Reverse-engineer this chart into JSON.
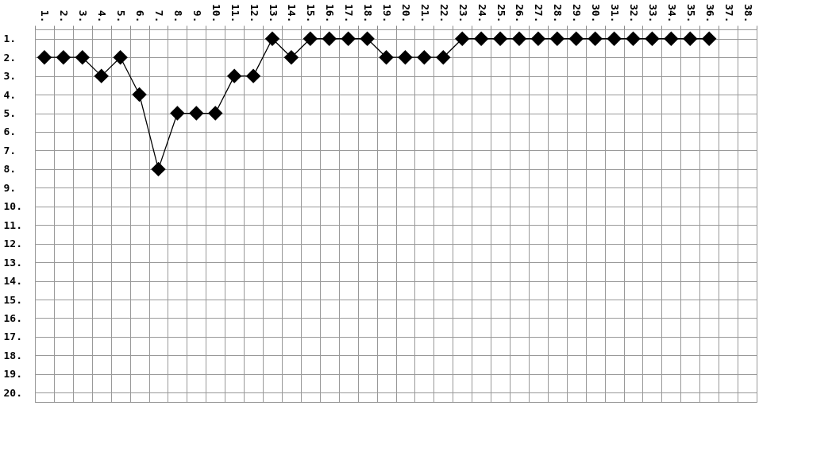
{
  "chart_data": {
    "type": "line",
    "categories": [
      "1.",
      "2.",
      "3.",
      "4.",
      "5.",
      "6.",
      "7.",
      "8.",
      "9.",
      "10.",
      "11.",
      "12.",
      "13.",
      "14.",
      "15.",
      "16.",
      "17.",
      "18.",
      "19.",
      "20.",
      "21.",
      "22.",
      "23.",
      "24.",
      "25.",
      "26.",
      "27.",
      "28.",
      "29.",
      "30.",
      "31.",
      "32.",
      "33.",
      "34.",
      "35.",
      "36.",
      "37.",
      "38."
    ],
    "series": [
      {
        "color": "#000000",
        "values": [
          2,
          2,
          2,
          3,
          2,
          4,
          8,
          5,
          5,
          5,
          3,
          3,
          1,
          2,
          1,
          1,
          1,
          1,
          2,
          2,
          2,
          2,
          1,
          1,
          1,
          1,
          1,
          1,
          1,
          1,
          1,
          1,
          1,
          1,
          1,
          1,
          null,
          null
        ]
      }
    ],
    "ylim": [
      20.5,
      0.5
    ],
    "yticks": [
      {
        "value": 1,
        "label": "1."
      },
      {
        "value": 2,
        "label": "2."
      },
      {
        "value": 3,
        "label": "3."
      },
      {
        "value": 4,
        "label": "4."
      },
      {
        "value": 5,
        "label": "5."
      },
      {
        "value": 6,
        "label": "6."
      },
      {
        "value": 7,
        "label": "7."
      },
      {
        "value": 8,
        "label": "8."
      },
      {
        "value": 9,
        "label": "9."
      },
      {
        "value": 10,
        "label": "10."
      },
      {
        "value": 11,
        "label": "11."
      },
      {
        "value": 12,
        "label": "12."
      },
      {
        "value": 13,
        "label": "13."
      },
      {
        "value": 14,
        "label": "14."
      },
      {
        "value": 15,
        "label": "15."
      },
      {
        "value": 16,
        "label": "16."
      },
      {
        "value": 17,
        "label": "17."
      },
      {
        "value": 18,
        "label": "18."
      },
      {
        "value": 19,
        "label": "19."
      },
      {
        "value": 20,
        "label": "20."
      }
    ],
    "grid": true,
    "marker": "diamond",
    "line_style": "solid"
  }
}
